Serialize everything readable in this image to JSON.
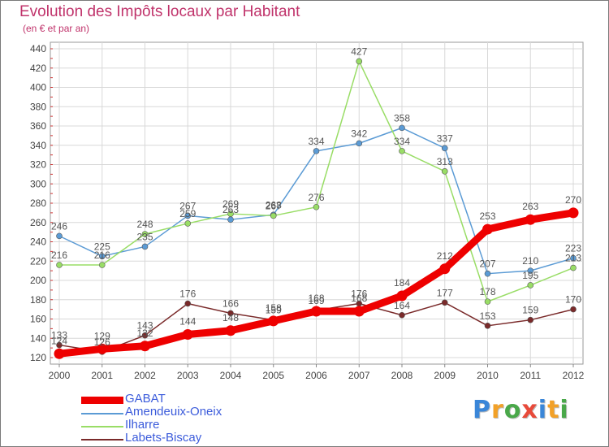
{
  "chart_data": {
    "type": "line",
    "title": "Evolution des Impôts locaux par Habitant",
    "subtitle": "(en € et par an)",
    "xlabel": "",
    "ylabel": "",
    "ylim": [
      120,
      440
    ],
    "yticks": [
      120,
      140,
      160,
      180,
      200,
      220,
      240,
      260,
      280,
      300,
      320,
      340,
      360,
      380,
      400,
      420,
      440
    ],
    "grid": true,
    "legend_position": "bottom-left",
    "categories": [
      "2000",
      "2001",
      "2002",
      "2003",
      "2004",
      "2005",
      "2006",
      "2007",
      "2008",
      "2009",
      "2010",
      "2011",
      "2012"
    ],
    "series": [
      {
        "name": "GABAT",
        "color": "#ee0000",
        "values": [
          124,
          129,
          132,
          144,
          148,
          158,
          168,
          168,
          184,
          212,
          253,
          263,
          270
        ]
      },
      {
        "name": "Amendeuix-Oneix",
        "color": "#5b9bd5",
        "values": [
          246,
          225,
          235,
          267,
          263,
          268,
          334,
          342,
          358,
          337,
          207,
          210,
          223
        ]
      },
      {
        "name": "Ilharre",
        "color": "#99dd66",
        "values": [
          216,
          216,
          248,
          259,
          269,
          267,
          276,
          427,
          334,
          313,
          178,
          195,
          213
        ]
      },
      {
        "name": "Labets-Biscay",
        "color": "#7a2a2a",
        "values": [
          133,
          126,
          143,
          176,
          166,
          159,
          169,
          176,
          164,
          177,
          153,
          159,
          170
        ]
      }
    ]
  },
  "logo": {
    "text": "Proxiti",
    "letters": [
      "P",
      "r",
      "o",
      "x",
      "i",
      "t",
      "i"
    ],
    "colors": [
      "#3a86d8",
      "#f2a128",
      "#4aa84a",
      "#e84a3a",
      "#3a86d8",
      "#f2a128",
      "#4aa84a"
    ]
  }
}
